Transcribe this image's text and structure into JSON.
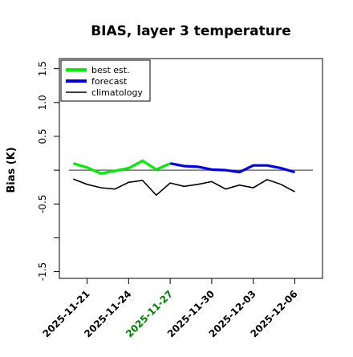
{
  "chart_data": {
    "type": "line",
    "title": "BIAS, layer 3 temperature",
    "xlabel": "",
    "ylabel": "Bias (K)",
    "xlim": [
      "2025-11-19",
      "2025-12-08"
    ],
    "ylim": [
      -1.6,
      1.65
    ],
    "yticks": [
      -1.5,
      -1.0,
      -0.5,
      0.0,
      0.5,
      1.0,
      1.5
    ],
    "ytick_labels": [
      "-1.5",
      "",
      "-0.5",
      "",
      "0.5",
      "1.0",
      "1.5"
    ],
    "xticks": [
      {
        "date": "2025-11-21",
        "label": "2025-11-21",
        "color": "#000000"
      },
      {
        "date": "2025-11-24",
        "label": "2025-11-24",
        "color": "#000000"
      },
      {
        "date": "2025-11-27",
        "label": "2025-11-27",
        "color": "#008000"
      },
      {
        "date": "2025-11-30",
        "label": "2025-11-30",
        "color": "#000000"
      },
      {
        "date": "2025-12-03",
        "label": "2025-12-03",
        "color": "#000000"
      },
      {
        "date": "2025-12-06",
        "label": "2025-12-06",
        "color": "#000000"
      }
    ],
    "zero_line": {
      "y": 0.0,
      "color": "#555555"
    },
    "legend_position": "top-left",
    "series": [
      {
        "name": "best est.",
        "color": "#00ee00",
        "x": [
          "2025-11-20",
          "2025-11-21",
          "2025-11-22",
          "2025-11-23",
          "2025-11-24",
          "2025-11-25",
          "2025-11-26",
          "2025-11-27"
        ],
        "values": [
          0.1,
          0.04,
          -0.05,
          -0.01,
          0.03,
          0.14,
          0.01,
          0.1
        ]
      },
      {
        "name": "forecast",
        "color": "#0000ee",
        "x": [
          "2025-11-27",
          "2025-11-28",
          "2025-11-29",
          "2025-11-30",
          "2025-12-01",
          "2025-12-02",
          "2025-12-03",
          "2025-12-04",
          "2025-12-05",
          "2025-12-06"
        ],
        "values": [
          0.1,
          0.06,
          0.05,
          0.01,
          0.0,
          -0.03,
          0.07,
          0.07,
          0.03,
          -0.03
        ]
      },
      {
        "name": "climatology",
        "color": "#000000",
        "x": [
          "2025-11-20",
          "2025-11-21",
          "2025-11-22",
          "2025-11-23",
          "2025-11-24",
          "2025-11-25",
          "2025-11-26",
          "2025-11-27",
          "2025-11-28",
          "2025-11-29",
          "2025-11-30",
          "2025-12-01",
          "2025-12-02",
          "2025-12-03",
          "2025-12-04",
          "2025-12-05",
          "2025-12-06"
        ],
        "values": [
          -0.13,
          -0.21,
          -0.26,
          -0.28,
          -0.18,
          -0.15,
          -0.37,
          -0.19,
          -0.24,
          -0.21,
          -0.17,
          -0.28,
          -0.22,
          -0.26,
          -0.14,
          -0.21,
          -0.32
        ]
      }
    ]
  }
}
